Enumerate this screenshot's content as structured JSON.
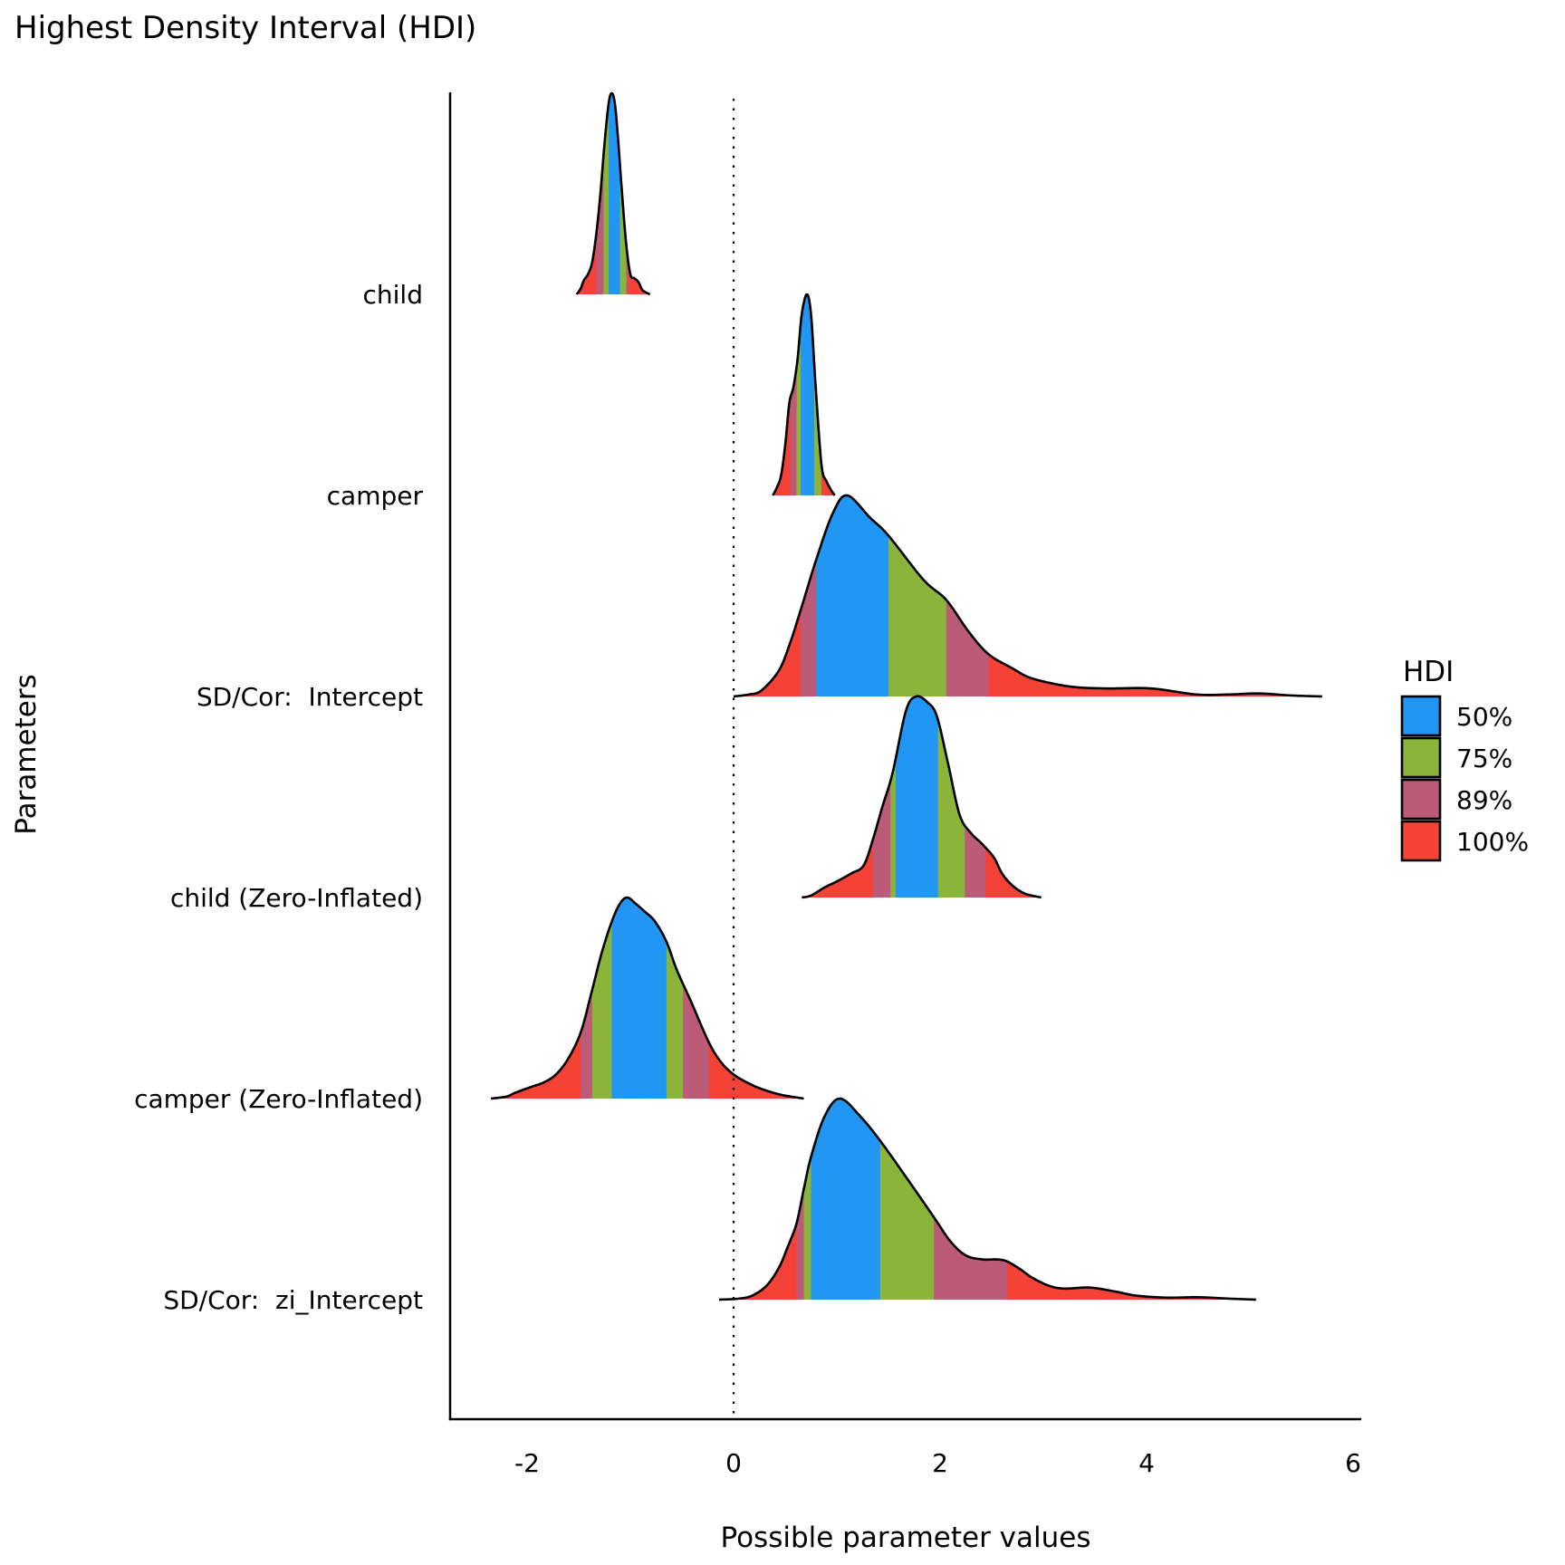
{
  "chart_data": {
    "type": "ridgeline",
    "title": "Highest Density Interval (HDI)",
    "xlabel": "Possible parameter values",
    "ylabel": "Parameters",
    "xlim": [
      -2.75,
      6.08
    ],
    "xticks": [
      -2,
      0,
      2,
      4,
      6
    ],
    "xtick_labels": [
      "-2",
      "0",
      "2",
      "4",
      "6"
    ],
    "reference_line": {
      "x": 0,
      "style": "dotted"
    },
    "grid": false,
    "legend": {
      "title": "HDI",
      "placement": "right",
      "items": [
        {
          "label": "50%",
          "color": "#2196F3"
        },
        {
          "label": "75%",
          "color": "#8BB43A"
        },
        {
          "label": "89%",
          "color": "#BC5B77"
        },
        {
          "label": "100%",
          "color": "#F44336"
        }
      ]
    },
    "series": [
      {
        "name": "child",
        "range": [
          -1.52,
          -0.81
        ],
        "bands": [
          {
            "hdi": "100%",
            "from": -1.52,
            "to": -1.33
          },
          {
            "hdi": "89%",
            "from": -1.33,
            "to": -1.26
          },
          {
            "hdi": "75%",
            "from": -1.26,
            "to": -1.21
          },
          {
            "hdi": "50%",
            "from": -1.21,
            "to": -1.1
          },
          {
            "hdi": "75%",
            "from": -1.1,
            "to": -1.04
          },
          {
            "hdi": "89%",
            "from": -1.04,
            "to": -1.02
          },
          {
            "hdi": "100%",
            "from": -1.02,
            "to": -0.81
          }
        ],
        "density": [
          [
            -1.52,
            0
          ],
          [
            -1.48,
            0.03
          ],
          [
            -1.45,
            0.07
          ],
          [
            -1.41,
            0.1
          ],
          [
            -1.37,
            0.16
          ],
          [
            -1.33,
            0.3
          ],
          [
            -1.29,
            0.5
          ],
          [
            -1.25,
            0.75
          ],
          [
            -1.21,
            0.95
          ],
          [
            -1.18,
            1.0
          ],
          [
            -1.15,
            0.95
          ],
          [
            -1.12,
            0.78
          ],
          [
            -1.08,
            0.5
          ],
          [
            -1.04,
            0.25
          ],
          [
            -1.0,
            0.1
          ],
          [
            -0.96,
            0.08
          ],
          [
            -0.92,
            0.06
          ],
          [
            -0.88,
            0.02
          ],
          [
            -0.81,
            0
          ]
        ]
      },
      {
        "name": "camper",
        "range": [
          0.38,
          0.98
        ],
        "bands": [
          {
            "hdi": "100%",
            "from": 0.38,
            "to": 0.55
          },
          {
            "hdi": "89%",
            "from": 0.55,
            "to": 0.61
          },
          {
            "hdi": "75%",
            "from": 0.61,
            "to": 0.65
          },
          {
            "hdi": "50%",
            "from": 0.65,
            "to": 0.78
          },
          {
            "hdi": "75%",
            "from": 0.78,
            "to": 0.85
          },
          {
            "hdi": "100%",
            "from": 0.85,
            "to": 0.98
          }
        ],
        "density": [
          [
            0.38,
            0
          ],
          [
            0.42,
            0.04
          ],
          [
            0.46,
            0.1
          ],
          [
            0.5,
            0.25
          ],
          [
            0.54,
            0.46
          ],
          [
            0.58,
            0.54
          ],
          [
            0.62,
            0.68
          ],
          [
            0.66,
            0.9
          ],
          [
            0.71,
            1.0
          ],
          [
            0.75,
            0.9
          ],
          [
            0.79,
            0.58
          ],
          [
            0.83,
            0.28
          ],
          [
            0.86,
            0.12
          ],
          [
            0.9,
            0.07
          ],
          [
            0.94,
            0.03
          ],
          [
            0.98,
            0
          ]
        ]
      },
      {
        "name": "SD/Cor:  Intercept",
        "range": [
          0.0,
          5.7
        ],
        "bands": [
          {
            "hdi": "100%",
            "from": 0.0,
            "to": 0.65
          },
          {
            "hdi": "89%",
            "from": 0.65,
            "to": 0.8
          },
          {
            "hdi": "50%",
            "from": 0.8,
            "to": 1.5
          },
          {
            "hdi": "75%",
            "from": 1.5,
            "to": 2.06
          },
          {
            "hdi": "89%",
            "from": 2.06,
            "to": 2.47
          },
          {
            "hdi": "100%",
            "from": 2.47,
            "to": 5.7
          }
        ],
        "density": [
          [
            0.0,
            0
          ],
          [
            0.15,
            0.01
          ],
          [
            0.27,
            0.03
          ],
          [
            0.44,
            0.13
          ],
          [
            0.55,
            0.27
          ],
          [
            0.65,
            0.43
          ],
          [
            0.8,
            0.68
          ],
          [
            0.96,
            0.91
          ],
          [
            1.1,
            1.0
          ],
          [
            1.32,
            0.89
          ],
          [
            1.5,
            0.8
          ],
          [
            1.84,
            0.58
          ],
          [
            2.06,
            0.48
          ],
          [
            2.28,
            0.32
          ],
          [
            2.47,
            0.21
          ],
          [
            2.7,
            0.14
          ],
          [
            2.89,
            0.09
          ],
          [
            3.25,
            0.05
          ],
          [
            3.6,
            0.04
          ],
          [
            4.04,
            0.04
          ],
          [
            4.48,
            0.01
          ],
          [
            4.8,
            0.01
          ],
          [
            5.09,
            0.015
          ],
          [
            5.4,
            0.005
          ],
          [
            5.7,
            0
          ]
        ]
      },
      {
        "name": "child (Zero-Inflated)",
        "range": [
          0.66,
          2.98
        ],
        "bands": [
          {
            "hdi": "100%",
            "from": 0.66,
            "to": 1.35
          },
          {
            "hdi": "89%",
            "from": 1.35,
            "to": 1.52
          },
          {
            "hdi": "75%",
            "from": 1.52,
            "to": 1.57
          },
          {
            "hdi": "50%",
            "from": 1.57,
            "to": 1.98
          },
          {
            "hdi": "75%",
            "from": 1.98,
            "to": 2.24
          },
          {
            "hdi": "89%",
            "from": 2.24,
            "to": 2.44
          },
          {
            "hdi": "100%",
            "from": 2.44,
            "to": 2.98
          }
        ],
        "density": [
          [
            0.66,
            0
          ],
          [
            0.75,
            0.01
          ],
          [
            0.88,
            0.05
          ],
          [
            1.0,
            0.08
          ],
          [
            1.14,
            0.12
          ],
          [
            1.26,
            0.16
          ],
          [
            1.35,
            0.29
          ],
          [
            1.44,
            0.45
          ],
          [
            1.54,
            0.62
          ],
          [
            1.67,
            0.93
          ],
          [
            1.77,
            1.0
          ],
          [
            1.88,
            0.97
          ],
          [
            1.97,
            0.9
          ],
          [
            2.08,
            0.66
          ],
          [
            2.19,
            0.41
          ],
          [
            2.3,
            0.32
          ],
          [
            2.4,
            0.27
          ],
          [
            2.52,
            0.2
          ],
          [
            2.6,
            0.12
          ],
          [
            2.7,
            0.06
          ],
          [
            2.82,
            0.02
          ],
          [
            2.98,
            0
          ]
        ]
      },
      {
        "name": "camper (Zero-Inflated)",
        "range": [
          -2.35,
          0.68
        ],
        "bands": [
          {
            "hdi": "100%",
            "from": -2.35,
            "to": -1.48
          },
          {
            "hdi": "89%",
            "from": -1.48,
            "to": -1.37
          },
          {
            "hdi": "75%",
            "from": -1.37,
            "to": -1.18
          },
          {
            "hdi": "50%",
            "from": -1.18,
            "to": -0.65
          },
          {
            "hdi": "75%",
            "from": -0.65,
            "to": -0.49
          },
          {
            "hdi": "89%",
            "from": -0.49,
            "to": -0.24
          },
          {
            "hdi": "100%",
            "from": -0.24,
            "to": 0.68
          }
        ],
        "density": [
          [
            -2.35,
            0
          ],
          [
            -2.2,
            0.01
          ],
          [
            -2.11,
            0.03
          ],
          [
            -1.95,
            0.06
          ],
          [
            -1.84,
            0.08
          ],
          [
            -1.72,
            0.12
          ],
          [
            -1.6,
            0.2
          ],
          [
            -1.48,
            0.33
          ],
          [
            -1.38,
            0.52
          ],
          [
            -1.28,
            0.72
          ],
          [
            -1.18,
            0.88
          ],
          [
            -1.1,
            0.97
          ],
          [
            -1.03,
            1.0
          ],
          [
            -0.95,
            0.97
          ],
          [
            -0.86,
            0.93
          ],
          [
            -0.76,
            0.88
          ],
          [
            -0.65,
            0.78
          ],
          [
            -0.55,
            0.64
          ],
          [
            -0.41,
            0.48
          ],
          [
            -0.24,
            0.28
          ],
          [
            -0.12,
            0.18
          ],
          [
            0.0,
            0.12
          ],
          [
            0.13,
            0.08
          ],
          [
            0.26,
            0.05
          ],
          [
            0.45,
            0.02
          ],
          [
            0.68,
            0
          ]
        ]
      },
      {
        "name": "SD/Cor:  zi_Intercept",
        "range": [
          -0.14,
          5.06
        ],
        "bands": [
          {
            "hdi": "100%",
            "from": -0.14,
            "to": 0.61
          },
          {
            "hdi": "89%",
            "from": 0.61,
            "to": 0.68
          },
          {
            "hdi": "75%",
            "from": 0.68,
            "to": 0.75
          },
          {
            "hdi": "50%",
            "from": 0.75,
            "to": 1.42
          },
          {
            "hdi": "75%",
            "from": 1.42,
            "to": 1.94
          },
          {
            "hdi": "89%",
            "from": 1.94,
            "to": 2.65
          },
          {
            "hdi": "100%",
            "from": 2.65,
            "to": 5.06
          }
        ],
        "density": [
          [
            -0.14,
            0
          ],
          [
            0.05,
            0.005
          ],
          [
            0.18,
            0.02
          ],
          [
            0.32,
            0.07
          ],
          [
            0.44,
            0.16
          ],
          [
            0.53,
            0.27
          ],
          [
            0.61,
            0.38
          ],
          [
            0.68,
            0.55
          ],
          [
            0.75,
            0.71
          ],
          [
            0.88,
            0.91
          ],
          [
            1.03,
            1.0
          ],
          [
            1.23,
            0.91
          ],
          [
            1.42,
            0.79
          ],
          [
            1.67,
            0.61
          ],
          [
            1.94,
            0.41
          ],
          [
            2.1,
            0.29
          ],
          [
            2.25,
            0.22
          ],
          [
            2.41,
            0.2
          ],
          [
            2.55,
            0.2
          ],
          [
            2.65,
            0.19
          ],
          [
            2.78,
            0.15
          ],
          [
            2.89,
            0.11
          ],
          [
            3.05,
            0.07
          ],
          [
            3.2,
            0.055
          ],
          [
            3.45,
            0.06
          ],
          [
            3.7,
            0.04
          ],
          [
            3.9,
            0.02
          ],
          [
            4.2,
            0.01
          ],
          [
            4.5,
            0.012
          ],
          [
            4.8,
            0.005
          ],
          [
            5.06,
            0
          ]
        ]
      }
    ]
  }
}
